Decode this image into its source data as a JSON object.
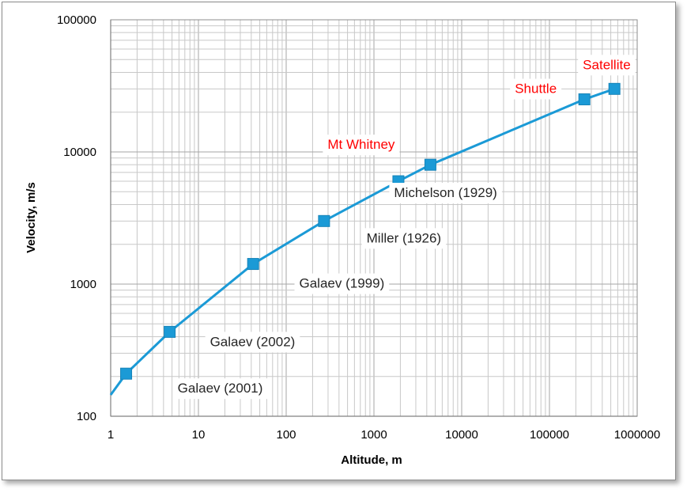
{
  "chart_data": {
    "type": "line",
    "title": "",
    "xlabel": "Altitude, m",
    "ylabel": "Velocity, m/s",
    "x_scale": "log",
    "y_scale": "log",
    "xlim": [
      1,
      1000000
    ],
    "ylim": [
      100,
      100000
    ],
    "x_ticks": [
      "1",
      "10",
      "100",
      "1000",
      "10000",
      "100000",
      "1000000"
    ],
    "y_ticks": [
      "100",
      "1000",
      "10000",
      "100000"
    ],
    "grid": true,
    "legend": "none",
    "line_color": "#1b9ad6",
    "marker": "square",
    "curve_start": {
      "x": 1,
      "y": 145
    },
    "series": [
      {
        "x": [
          1.5,
          4.7,
          42,
          270,
          1900,
          4400,
          250000,
          550000
        ],
        "y": [
          210,
          435,
          1420,
          3000,
          6000,
          8000,
          25000,
          30000
        ]
      }
    ],
    "annotations": [
      {
        "text": "Galaev (2001)",
        "x": 1.6,
        "y": 210,
        "color": "#262626"
      },
      {
        "text": "Galaev (2002)",
        "x": 5,
        "y": 435,
        "color": "#262626"
      },
      {
        "text": "Galaev (1999)",
        "x": 45,
        "y": 1420,
        "color": "#262626"
      },
      {
        "text": "Miller (1926)",
        "x": 280,
        "y": 3000,
        "color": "#262626"
      },
      {
        "text": "Michelson (1929)",
        "x": 2000,
        "y": 6000,
        "color": "#262626"
      },
      {
        "text": "Mt Whitney",
        "x": 4400,
        "y": 8000,
        "color": "#ff0000"
      },
      {
        "text": "Shuttle",
        "x": 250000,
        "y": 25000,
        "color": "#ff0000"
      },
      {
        "text": "Satellite",
        "x": 550000,
        "y": 30000,
        "color": "#ff0000"
      }
    ]
  }
}
